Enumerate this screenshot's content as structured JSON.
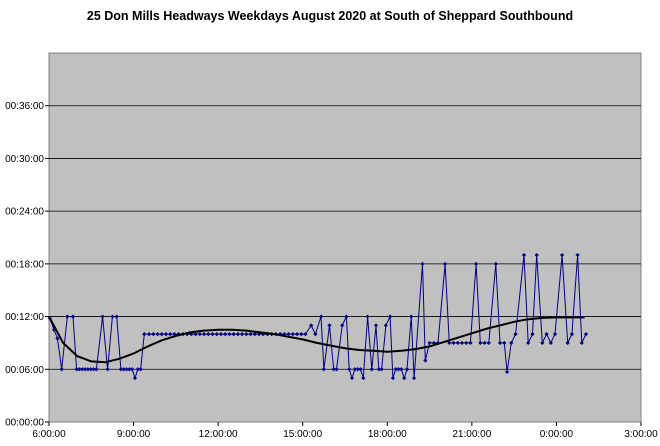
{
  "chart_data": {
    "type": "line",
    "title": "25 Don Mills Headways Weekdays August 2020 at South of Sheppard Southbound",
    "xlabel": "",
    "ylabel": "",
    "x_unit": "hours since 00:00 (values above 24 are after midnight)",
    "y_unit": "minutes",
    "xlim": [
      6,
      27
    ],
    "ylim": [
      0,
      42
    ],
    "x_tick_values": [
      6,
      9,
      12,
      15,
      18,
      21,
      24,
      27
    ],
    "x_tick_labels": [
      "6:00:00",
      "9:00:00",
      "12:00:00",
      "15:00:00",
      "18:00:00",
      "21:00:00",
      "0:00:00",
      "3:00:00"
    ],
    "y_tick_values": [
      0,
      6,
      12,
      18,
      24,
      30,
      36
    ],
    "y_tick_labels": [
      "00:00:00",
      "00:06:00",
      "00:12:00",
      "00:18:00",
      "00:24:00",
      "00:30:00",
      "00:36:00"
    ],
    "grid": "horizontal",
    "plot_background": "#c0c0c0",
    "series": [
      {
        "name": "",
        "style": "line-with-markers",
        "color": "#000080",
        "points": [
          [
            6.03,
            11.8
          ],
          [
            6.18,
            10.5
          ],
          [
            6.3,
            9.5
          ],
          [
            6.45,
            6.0
          ],
          [
            6.65,
            12.0
          ],
          [
            6.85,
            12.0
          ],
          [
            6.98,
            6.0
          ],
          [
            7.08,
            6.0
          ],
          [
            7.18,
            6.0
          ],
          [
            7.28,
            6.0
          ],
          [
            7.38,
            6.0
          ],
          [
            7.48,
            6.0
          ],
          [
            7.58,
            6.0
          ],
          [
            7.68,
            6.0
          ],
          [
            7.9,
            12.0
          ],
          [
            8.08,
            6.0
          ],
          [
            8.25,
            12.0
          ],
          [
            8.4,
            12.0
          ],
          [
            8.55,
            6.0
          ],
          [
            8.65,
            6.0
          ],
          [
            8.75,
            6.0
          ],
          [
            8.85,
            6.0
          ],
          [
            8.95,
            6.0
          ],
          [
            9.05,
            5.0
          ],
          [
            9.15,
            6.0
          ],
          [
            9.25,
            6.0
          ],
          [
            9.38,
            10.0
          ],
          [
            9.55,
            10.0
          ],
          [
            9.7,
            10.0
          ],
          [
            9.85,
            10.0
          ],
          [
            10.0,
            10.0
          ],
          [
            10.15,
            10.0
          ],
          [
            10.3,
            10.0
          ],
          [
            10.45,
            10.0
          ],
          [
            10.6,
            10.0
          ],
          [
            10.75,
            10.0
          ],
          [
            10.9,
            10.0
          ],
          [
            11.05,
            10.0
          ],
          [
            11.2,
            10.0
          ],
          [
            11.35,
            10.0
          ],
          [
            11.5,
            10.0
          ],
          [
            11.65,
            10.0
          ],
          [
            11.8,
            10.0
          ],
          [
            11.95,
            10.0
          ],
          [
            12.1,
            10.0
          ],
          [
            12.25,
            10.0
          ],
          [
            12.4,
            10.0
          ],
          [
            12.55,
            10.0
          ],
          [
            12.7,
            10.0
          ],
          [
            12.85,
            10.0
          ],
          [
            13.0,
            10.0
          ],
          [
            13.15,
            10.0
          ],
          [
            13.3,
            10.0
          ],
          [
            13.45,
            10.0
          ],
          [
            13.6,
            10.0
          ],
          [
            13.75,
            10.0
          ],
          [
            13.9,
            10.0
          ],
          [
            14.05,
            10.0
          ],
          [
            14.2,
            10.0
          ],
          [
            14.35,
            10.0
          ],
          [
            14.5,
            10.0
          ],
          [
            14.65,
            10.0
          ],
          [
            14.8,
            10.0
          ],
          [
            14.95,
            10.0
          ],
          [
            15.1,
            10.0
          ],
          [
            15.3,
            11.0
          ],
          [
            15.45,
            10.0
          ],
          [
            15.65,
            12.0
          ],
          [
            15.75,
            6.0
          ],
          [
            15.95,
            11.0
          ],
          [
            16.1,
            6.0
          ],
          [
            16.2,
            6.0
          ],
          [
            16.4,
            11.0
          ],
          [
            16.55,
            12.0
          ],
          [
            16.65,
            6.0
          ],
          [
            16.75,
            5.0
          ],
          [
            16.85,
            6.0
          ],
          [
            16.95,
            6.0
          ],
          [
            17.05,
            6.0
          ],
          [
            17.15,
            5.0
          ],
          [
            17.3,
            12.0
          ],
          [
            17.45,
            6.0
          ],
          [
            17.6,
            11.0
          ],
          [
            17.7,
            6.0
          ],
          [
            17.8,
            6.0
          ],
          [
            17.95,
            11.0
          ],
          [
            18.1,
            12.0
          ],
          [
            18.2,
            5.0
          ],
          [
            18.3,
            6.0
          ],
          [
            18.4,
            6.0
          ],
          [
            18.5,
            6.0
          ],
          [
            18.6,
            5.0
          ],
          [
            18.7,
            6.0
          ],
          [
            18.85,
            12.0
          ],
          [
            18.95,
            5.0
          ],
          [
            19.25,
            18.0
          ],
          [
            19.35,
            7.0
          ],
          [
            19.5,
            9.0
          ],
          [
            19.65,
            9.0
          ],
          [
            19.8,
            9.0
          ],
          [
            20.05,
            18.0
          ],
          [
            20.2,
            9.0
          ],
          [
            20.35,
            9.0
          ],
          [
            20.5,
            9.0
          ],
          [
            20.65,
            9.0
          ],
          [
            20.8,
            9.0
          ],
          [
            20.95,
            9.0
          ],
          [
            21.15,
            18.0
          ],
          [
            21.3,
            9.0
          ],
          [
            21.45,
            9.0
          ],
          [
            21.6,
            9.0
          ],
          [
            21.85,
            18.0
          ],
          [
            22.0,
            9.0
          ],
          [
            22.15,
            9.0
          ],
          [
            22.25,
            5.7
          ],
          [
            22.4,
            9.0
          ],
          [
            22.55,
            10.0
          ],
          [
            22.85,
            19.0
          ],
          [
            23.0,
            9.0
          ],
          [
            23.15,
            10.0
          ],
          [
            23.3,
            19.0
          ],
          [
            23.5,
            9.0
          ],
          [
            23.65,
            10.0
          ],
          [
            23.8,
            9.0
          ],
          [
            23.95,
            10.0
          ],
          [
            24.2,
            19.0
          ],
          [
            24.4,
            9.0
          ],
          [
            24.55,
            10.0
          ],
          [
            24.75,
            19.0
          ],
          [
            24.9,
            9.0
          ],
          [
            25.05,
            10.0
          ]
        ]
      },
      {
        "name": "",
        "style": "trend-line",
        "color": "#000000",
        "points": [
          [
            6.0,
            12.0
          ],
          [
            6.5,
            9.0
          ],
          [
            7.0,
            7.5
          ],
          [
            7.5,
            6.9
          ],
          [
            8.0,
            6.8
          ],
          [
            8.5,
            7.2
          ],
          [
            9.0,
            7.8
          ],
          [
            9.5,
            8.6
          ],
          [
            10.0,
            9.3
          ],
          [
            10.5,
            9.8
          ],
          [
            11.0,
            10.2
          ],
          [
            11.5,
            10.4
          ],
          [
            12.0,
            10.5
          ],
          [
            12.5,
            10.5
          ],
          [
            13.0,
            10.4
          ],
          [
            13.5,
            10.2
          ],
          [
            14.0,
            10.0
          ],
          [
            14.5,
            9.7
          ],
          [
            15.0,
            9.4
          ],
          [
            15.5,
            9.0
          ],
          [
            16.0,
            8.7
          ],
          [
            16.5,
            8.4
          ],
          [
            17.0,
            8.2
          ],
          [
            17.5,
            8.1
          ],
          [
            18.0,
            8.0
          ],
          [
            18.5,
            8.1
          ],
          [
            19.0,
            8.3
          ],
          [
            19.5,
            8.6
          ],
          [
            20.0,
            9.1
          ],
          [
            20.5,
            9.6
          ],
          [
            21.0,
            10.1
          ],
          [
            21.5,
            10.6
          ],
          [
            22.0,
            11.0
          ],
          [
            22.5,
            11.4
          ],
          [
            23.0,
            11.7
          ],
          [
            23.5,
            11.85
          ],
          [
            24.0,
            11.9
          ],
          [
            24.5,
            11.9
          ],
          [
            25.0,
            11.9
          ]
        ]
      }
    ]
  }
}
